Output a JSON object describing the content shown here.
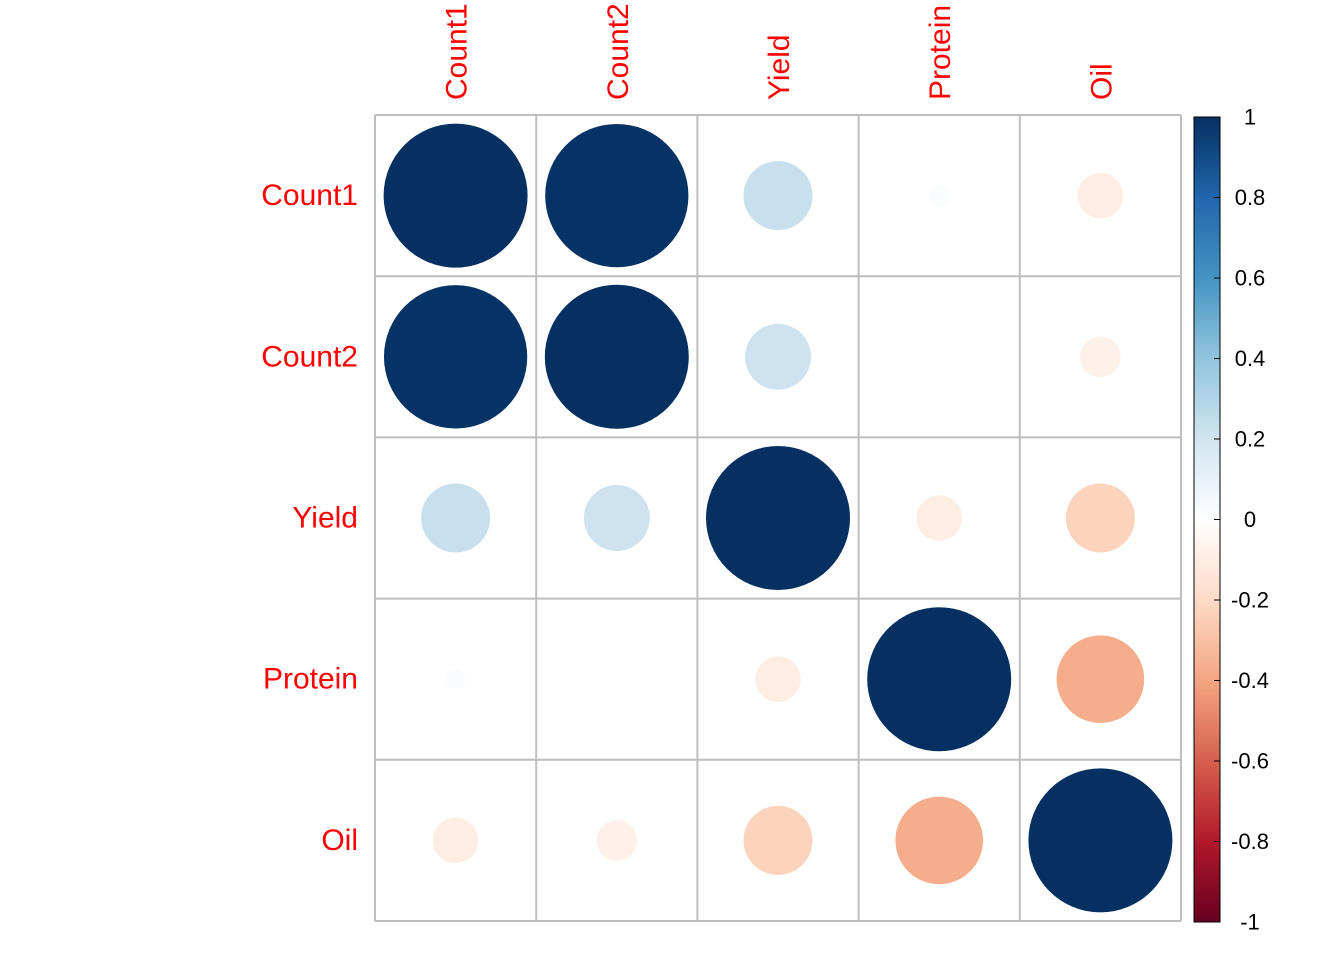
{
  "chart_data": {
    "type": "heatmap",
    "subtype": "correlation-circle",
    "variables": [
      "Count1",
      "Count2",
      "Yield",
      "Protein",
      "Oil"
    ],
    "matrix": [
      [
        1.0,
        0.99,
        0.23,
        0.02,
        -0.1
      ],
      [
        0.99,
        1.0,
        0.21,
        0.0,
        -0.08
      ],
      [
        0.23,
        0.21,
        1.0,
        -0.1,
        -0.23
      ],
      [
        0.02,
        0.0,
        -0.1,
        1.0,
        -0.37
      ],
      [
        -0.1,
        -0.08,
        -0.23,
        -0.37,
        1.0
      ]
    ],
    "colorbar": {
      "range": [
        -1,
        1
      ],
      "ticks": [
        "1",
        "0.8",
        "0.6",
        "0.4",
        "0.2",
        "0",
        "-0.2",
        "-0.4",
        "-0.6",
        "-0.8",
        "-1"
      ],
      "colors": [
        "#67001F",
        "#B2182B",
        "#D6604D",
        "#F4A582",
        "#FDDBC7",
        "#FFFFFF",
        "#D1E5F0",
        "#92C5DE",
        "#4393C3",
        "#2166AC",
        "#053061"
      ]
    },
    "label_color": "#FF0000",
    "grid": true
  }
}
